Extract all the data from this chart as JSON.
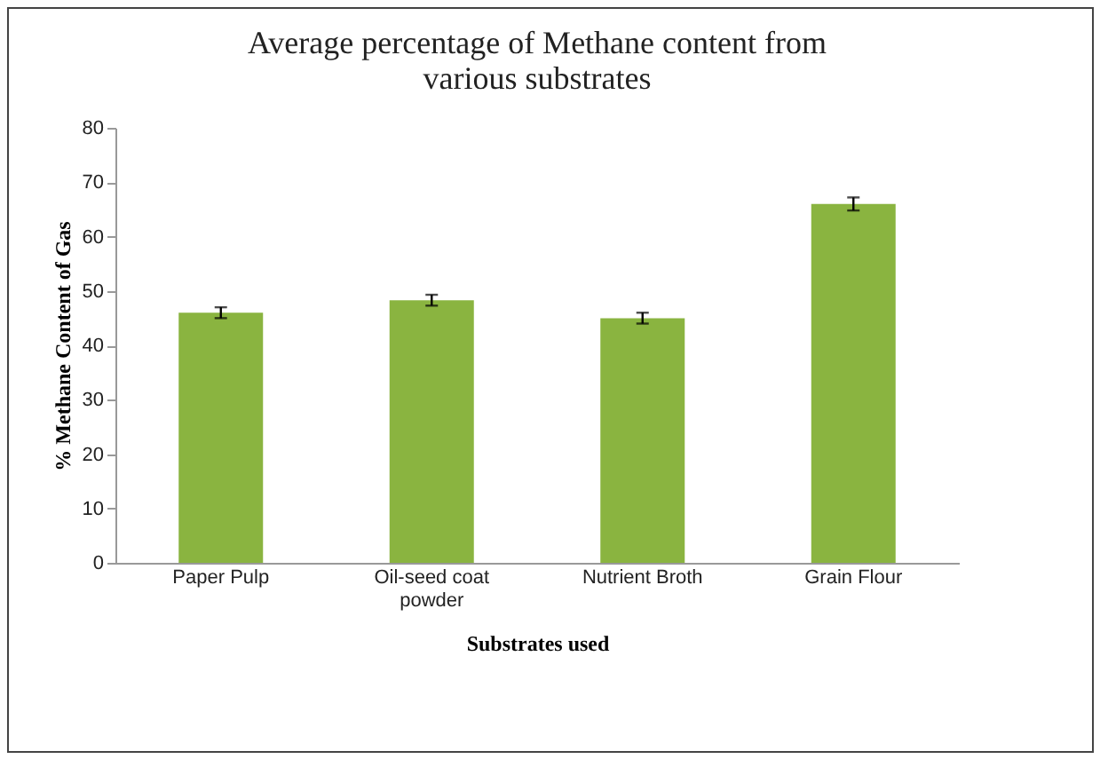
{
  "chart_data": {
    "type": "bar",
    "title": "Average percentage of Methane content from various substrates",
    "xlabel": "Substrates used",
    "ylabel": "%  Methane Content of Gas",
    "categories": [
      "Paper Pulp",
      "Oil-seed coat powder",
      "Nutrient Broth",
      "Grain Flour"
    ],
    "values": [
      46,
      48.3,
      45,
      66
    ],
    "errors": [
      1,
      1,
      1,
      1.2
    ],
    "color": "#8ab440",
    "ylim": [
      0,
      80
    ],
    "yticks": [
      0,
      10,
      20,
      30,
      40,
      50,
      60,
      70,
      80
    ],
    "grid": false
  }
}
